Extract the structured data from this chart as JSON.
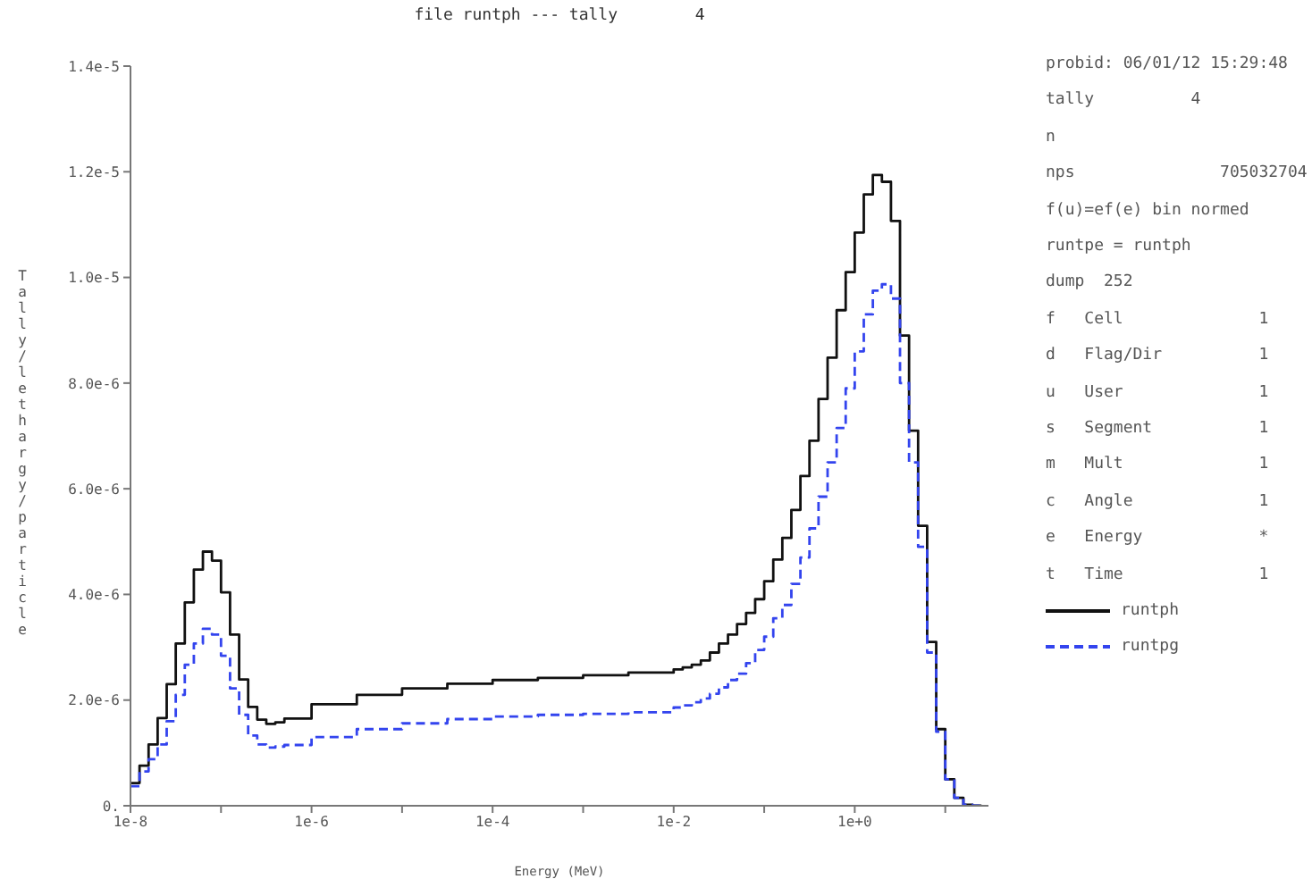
{
  "chart_data": {
    "type": "step",
    "title": "file runtph --- tally        4",
    "xlabel": "Energy (MeV)",
    "ylabel": "Tally/lethargy/particle",
    "log": "x",
    "legend": "right",
    "marker": "none",
    "xlim": [
      1e-08,
      30
    ],
    "ylim": [
      0,
      1.4e-05
    ],
    "xticks": [
      {
        "value": 1e-08,
        "label": "1e-8"
      },
      {
        "value": 1e-07,
        "label": null
      },
      {
        "value": 1e-06,
        "label": "1e-6"
      },
      {
        "value": 1e-05,
        "label": null
      },
      {
        "value": 0.0001,
        "label": "1e-4"
      },
      {
        "value": 0.001,
        "label": null
      },
      {
        "value": 0.01,
        "label": "1e-2"
      },
      {
        "value": 0.1,
        "label": null
      },
      {
        "value": 1,
        "label": "1e+0"
      },
      {
        "value": 10,
        "label": null
      }
    ],
    "yticks": [
      {
        "value": 0,
        "label": "0."
      },
      {
        "value": 2e-06,
        "label": "2.0e-6"
      },
      {
        "value": 4e-06,
        "label": "4.0e-6"
      },
      {
        "value": 6e-06,
        "label": "6.0e-6"
      },
      {
        "value": 8e-06,
        "label": "8.0e-6"
      },
      {
        "value": 1e-05,
        "label": "1.0e-5"
      },
      {
        "value": 1.2e-05,
        "label": "1.2e-5"
      },
      {
        "value": 1.4e-05,
        "label": "1.4e-5"
      }
    ],
    "x": [
      1e-08,
      1.259e-08,
      1.585e-08,
      1.995e-08,
      2.512e-08,
      3.162e-08,
      3.981e-08,
      5.012e-08,
      6.31e-08,
      7.943e-08,
      1e-07,
      1.259e-07,
      1.585e-07,
      1.995e-07,
      2.512e-07,
      3.162e-07,
      3.981e-07,
      5.012e-07,
      1e-06,
      3.162e-06,
      1e-05,
      3.162e-05,
      0.0001,
      0.0003162,
      0.001,
      0.003162,
      0.01,
      0.01259,
      0.01585,
      0.01995,
      0.02512,
      0.03162,
      0.03981,
      0.05012,
      0.0631,
      0.07943,
      0.1,
      0.1259,
      0.1585,
      0.1995,
      0.2512,
      0.3162,
      0.3981,
      0.5012,
      0.631,
      0.7943,
      1,
      1.259,
      1.585,
      1.995,
      2.512,
      3.162,
      3.981,
      5.012,
      6.31,
      7.943,
      10,
      12.59,
      15.85,
      19.95,
      25.12
    ],
    "series": [
      {
        "name": "runtph",
        "color": "#111111",
        "line_style": "solid",
        "values": [
          4.3e-07,
          7.6e-07,
          1.16e-06,
          1.66e-06,
          2.3e-06,
          3.07e-06,
          3.85e-06,
          4.47e-06,
          4.81e-06,
          4.64e-06,
          4.04e-06,
          3.24e-06,
          2.39e-06,
          1.87e-06,
          1.63e-06,
          1.55e-06,
          1.58e-06,
          1.65e-06,
          1.92e-06,
          2.1e-06,
          2.22e-06,
          2.31e-06,
          2.38e-06,
          2.42e-06,
          2.47e-06,
          2.52e-06,
          2.58e-06,
          2.62e-06,
          2.67e-06,
          2.75e-06,
          2.9e-06,
          3.07e-06,
          3.24e-06,
          3.44e-06,
          3.65e-06,
          3.91e-06,
          4.25e-06,
          4.66e-06,
          5.07e-06,
          5.6e-06,
          6.24e-06,
          6.91e-06,
          7.7e-06,
          8.48e-06,
          9.38e-06,
          1.01e-05,
          1.085e-05,
          1.157e-05,
          1.194e-05,
          1.181e-05,
          1.107e-05,
          8.9e-06,
          7.1e-06,
          5.3e-06,
          3.1e-06,
          1.45e-06,
          5e-07,
          1.5e-07,
          2e-08,
          0,
          0
        ]
      },
      {
        "name": "runtpg",
        "color": "#3344ee",
        "line_style": "dashed",
        "values": [
          3.7e-07,
          6.5e-07,
          8.8e-07,
          1.16e-06,
          1.6e-06,
          2.1e-06,
          2.67e-06,
          3.07e-06,
          3.35e-06,
          3.24e-06,
          2.84e-06,
          2.22e-06,
          1.72e-06,
          1.33e-06,
          1.16e-06,
          1.1e-06,
          1.12e-06,
          1.15e-06,
          1.3e-06,
          1.45e-06,
          1.56e-06,
          1.64e-06,
          1.69e-06,
          1.72e-06,
          1.74e-06,
          1.77e-06,
          1.86e-06,
          1.9e-06,
          1.96e-06,
          2.03e-06,
          2.12e-06,
          2.24e-06,
          2.38e-06,
          2.5e-06,
          2.7e-06,
          2.95e-06,
          3.2e-06,
          3.55e-06,
          3.8e-06,
          4.2e-06,
          4.7e-06,
          5.25e-06,
          5.85e-06,
          6.5e-06,
          7.15e-06,
          7.9e-06,
          8.6e-06,
          9.3e-06,
          9.75e-06,
          9.87e-06,
          9.6e-06,
          8e-06,
          6.5e-06,
          4.9e-06,
          2.9e-06,
          1.4e-06,
          5e-07,
          1.5e-07,
          2e-08,
          0,
          0
        ]
      }
    ],
    "annotations": [
      "probid: 06/01/12 15:29:48",
      "tally          4",
      "n",
      "nps               705032704",
      "f(u)=ef(e) bin normed",
      "runtpe = runtph",
      "dump  252",
      "f   Cell              1",
      "d   Flag/Dir          1",
      "u   User              1",
      "s   Segment           1",
      "m   Mult              1",
      "c   Angle             1",
      "e   Energy            *",
      "t   Time              1"
    ]
  }
}
